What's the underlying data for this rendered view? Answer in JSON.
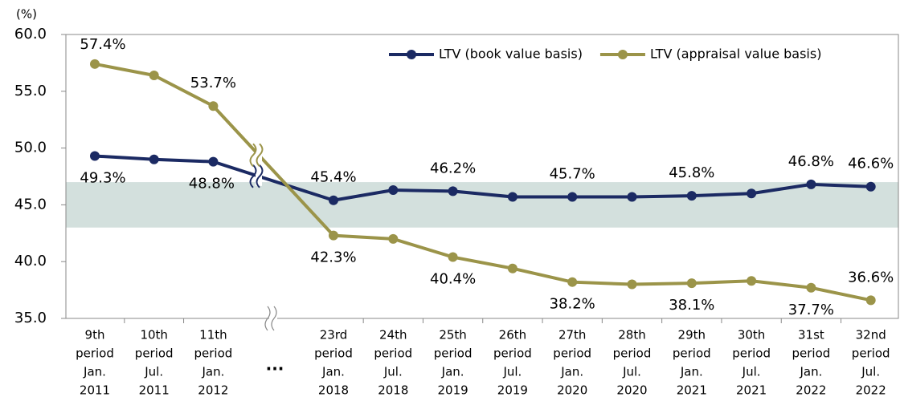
{
  "chart_data": {
    "type": "line",
    "y_unit": "(%)",
    "categories": [
      [
        "9th",
        "period",
        "Jan.",
        "2011"
      ],
      [
        "10th",
        "period",
        "Jul.",
        "2011"
      ],
      [
        "11th",
        "period",
        "Jan.",
        "2012"
      ],
      [
        "23rd",
        "period",
        "Jan.",
        "2018"
      ],
      [
        "24th",
        "period",
        "Jul.",
        "2018"
      ],
      [
        "25th",
        "period",
        "Jan.",
        "2019"
      ],
      [
        "26th",
        "period",
        "Jul.",
        "2019"
      ],
      [
        "27th",
        "period",
        "Jan.",
        "2020"
      ],
      [
        "28th",
        "period",
        "Jul.",
        "2020"
      ],
      [
        "29th",
        "period",
        "Jan.",
        "2021"
      ],
      [
        "30th",
        "period",
        "Jul.",
        "2021"
      ],
      [
        "31st",
        "period",
        "Jan.",
        "2022"
      ],
      [
        "32nd",
        "period",
        "Jul.",
        "2022"
      ]
    ],
    "axis_break_label": "...",
    "series": [
      {
        "name": "LTV (book value basis)",
        "color": "#1b2a63",
        "values": [
          49.3,
          49.0,
          48.8,
          45.4,
          46.3,
          46.2,
          45.7,
          45.7,
          45.7,
          45.8,
          46.0,
          46.8,
          46.6
        ],
        "value_labels": [
          "49.3%",
          null,
          "48.8%",
          "45.4%",
          null,
          "46.2%",
          null,
          "45.7%",
          null,
          "45.8%",
          null,
          "46.8%",
          "46.6%"
        ]
      },
      {
        "name": "LTV (appraisal value basis)",
        "color": "#9b9449",
        "values": [
          57.4,
          56.4,
          53.7,
          42.3,
          42.0,
          40.4,
          39.4,
          38.2,
          38.0,
          38.1,
          38.3,
          37.7,
          36.6
        ],
        "value_labels": [
          "57.4%",
          null,
          "53.7%",
          "42.3%",
          null,
          "40.4%",
          null,
          "38.2%",
          null,
          "38.1%",
          null,
          "37.7%",
          "36.6%"
        ]
      }
    ],
    "band": [
      43,
      47
    ],
    "band_color": "#d3e0dd",
    "ylim": [
      35,
      60
    ],
    "yticks": [
      {
        "value": 35,
        "label": "35.0"
      },
      {
        "value": 40,
        "label": "40.0"
      },
      {
        "value": 45,
        "label": "45.0"
      },
      {
        "value": 50,
        "label": "50.0"
      },
      {
        "value": 55,
        "label": "55.0"
      },
      {
        "value": 60,
        "label": "60.0"
      }
    ],
    "legend": "top-right"
  }
}
